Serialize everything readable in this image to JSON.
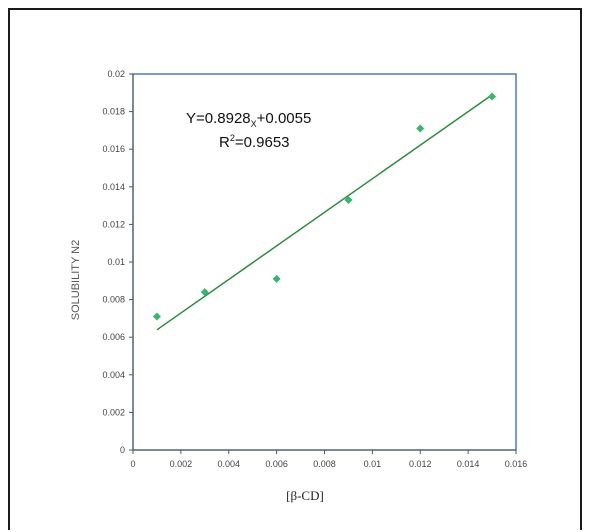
{
  "chart_data": {
    "type": "scatter",
    "x": [
      0.001,
      0.003,
      0.006,
      0.009,
      0.012,
      0.015
    ],
    "y": [
      0.0071,
      0.0084,
      0.0091,
      0.0133,
      0.0171,
      0.0188
    ],
    "xlabel": "[β-CD]",
    "ylabel": "SOLUBILITY N2",
    "xlim": [
      0,
      0.016
    ],
    "ylim": [
      0,
      0.02
    ],
    "x_ticks": [
      "0",
      "0.002",
      "0.004",
      "0.006",
      "0.008",
      "0.01",
      "0.012",
      "0.014",
      "0.016"
    ],
    "y_ticks": [
      "0",
      "0.002",
      "0.004",
      "0.006",
      "0.008",
      "0.01",
      "0.012",
      "0.014",
      "0.016",
      "0.018",
      "0.02"
    ],
    "trendline": {
      "slope": 0.8928,
      "intercept": 0.0055
    },
    "annotations": {
      "equation_prefix": "Y=0.8928",
      "equation_sub": "X",
      "equation_suffix": "+0.0055",
      "r2_prefix": "R",
      "r2_sup": "2",
      "r2_suffix": "=0.9653"
    },
    "grid": false,
    "legend": "none",
    "colors": {
      "marker": "#3cb371",
      "trendline": "#2e8b3e",
      "plot_border": "#4a7fb5"
    }
  }
}
